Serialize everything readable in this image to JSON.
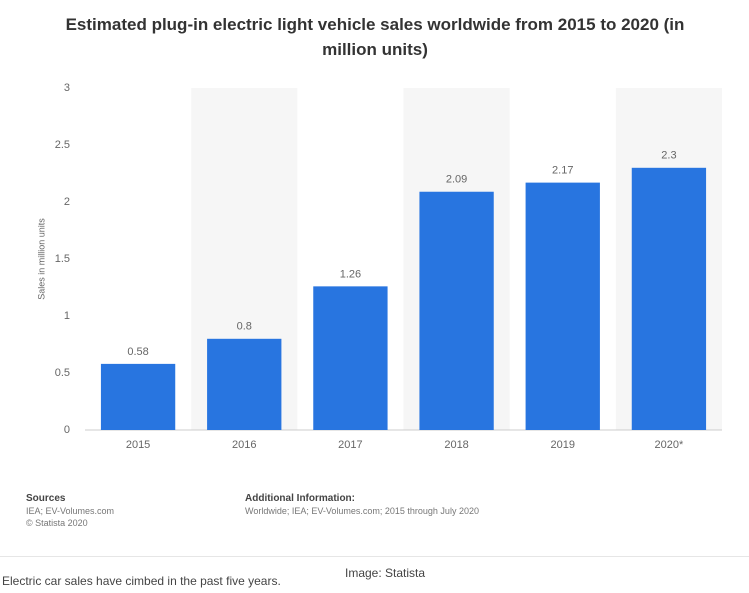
{
  "chart_data": {
    "type": "bar",
    "title": "Estimated plug-in electric light vehicle sales worldwide from 2015 to 2020 (in million units)",
    "y_label": "Sales in million units",
    "categories": [
      "2015",
      "2016",
      "2017",
      "2018",
      "2019",
      "2020*"
    ],
    "values": [
      0.58,
      0.8,
      1.26,
      2.09,
      2.17,
      2.3
    ],
    "color": "#2875e0",
    "ylim": [
      0,
      3
    ],
    "yticks": [
      0,
      0.5,
      1,
      1.5,
      2,
      2.5,
      3
    ],
    "grid": false,
    "sources": {
      "heading": "Sources",
      "lines": [
        "IEA; EV-Volumes.com",
        "© Statista 2020"
      ]
    },
    "additional_information": {
      "heading": "Additional Information:",
      "text": "Worldwide; IEA; EV-Volumes.com; 2015 through July 2020"
    }
  },
  "caption": {
    "text": "Electric car sales have cimbed in the past five years.",
    "credit": "Image: Statista"
  }
}
